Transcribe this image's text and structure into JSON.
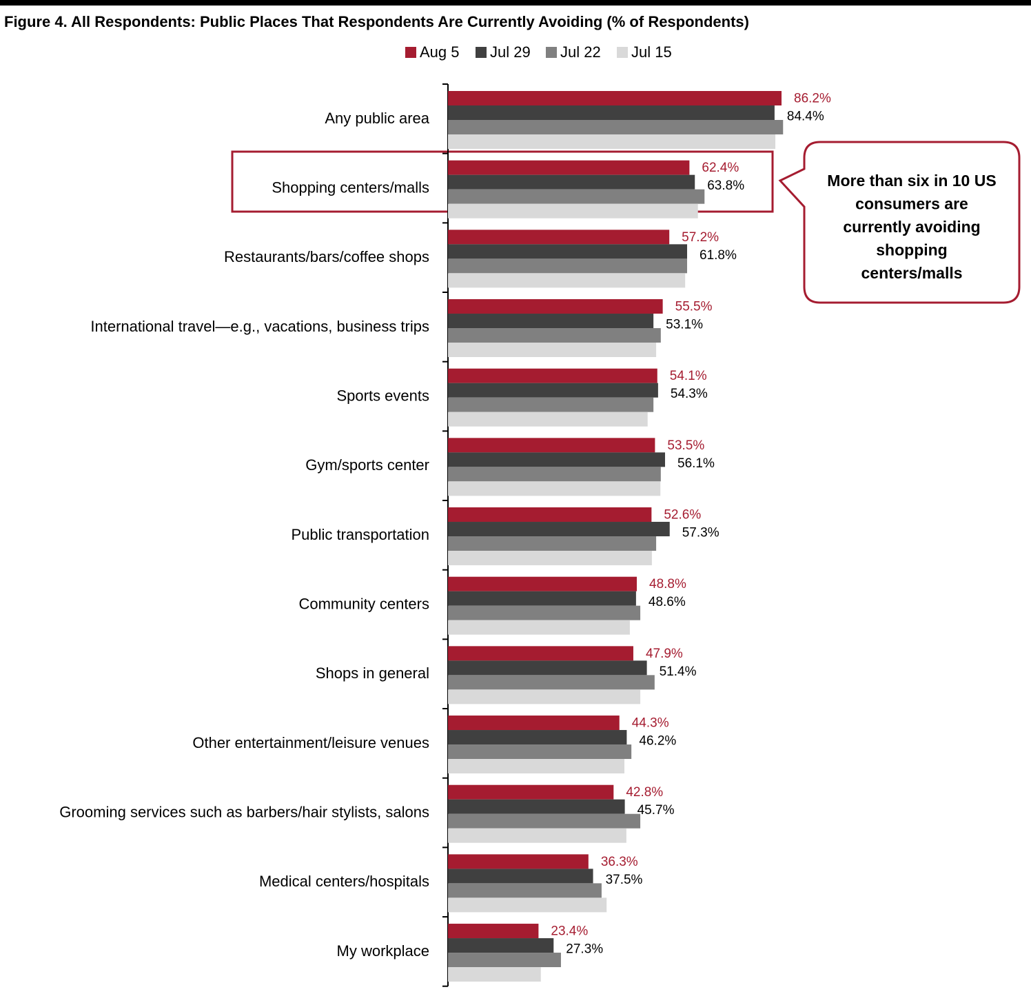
{
  "chart_data": {
    "type": "bar",
    "orientation": "horizontal",
    "title": "Figure 4. All Respondents: Public Places That Respondents Are Currently Avoiding (% of Respondents)",
    "categories": [
      "Any public area",
      "Shopping centers/malls",
      "Restaurants/bars/coffee shops",
      "International travel—e.g., vacations, business trips",
      "Sports events",
      "Gym/sports center",
      "Public transportation",
      "Community centers",
      "Shops in general",
      "Other entertainment/leisure venues",
      "Grooming services such as barbers/hair stylists, salons",
      "Medical centers/hospitals",
      "My workplace"
    ],
    "series": [
      {
        "name": "Aug 5",
        "color": "#a51c30",
        "values": [
          86.2,
          62.4,
          57.2,
          55.5,
          54.1,
          53.5,
          52.6,
          48.8,
          47.9,
          44.3,
          42.8,
          36.3,
          23.4
        ],
        "value_labels": [
          "86.2%",
          "62.4%",
          "57.2%",
          "55.5%",
          "54.1%",
          "53.5%",
          "52.6%",
          "48.8%",
          "47.9%",
          "44.3%",
          "42.8%",
          "36.3%",
          "23.4%"
        ]
      },
      {
        "name": "Jul 29",
        "color": "#404040",
        "values": [
          84.4,
          63.8,
          61.8,
          53.1,
          54.3,
          56.1,
          57.3,
          48.6,
          51.4,
          46.2,
          45.7,
          37.5,
          27.3
        ],
        "value_labels": [
          "84.4%",
          "63.8%",
          "61.8%",
          "53.1%",
          "54.3%",
          "56.1%",
          "57.3%",
          "48.6%",
          "51.4%",
          "46.2%",
          "45.7%",
          "37.5%",
          "27.3%"
        ]
      },
      {
        "name": "Jul 22",
        "color": "#808080",
        "values": [
          86.6,
          66.3,
          61.8,
          55.0,
          53.1,
          55.0,
          53.8,
          49.7,
          53.4,
          47.4,
          49.7,
          39.7,
          29.2
        ]
      },
      {
        "name": "Jul 15",
        "color": "#d9d9d9",
        "values": [
          84.6,
          64.6,
          61.3,
          53.8,
          51.6,
          54.9,
          52.7,
          47.0,
          49.7,
          45.6,
          46.1,
          41.0,
          24.0
        ]
      }
    ],
    "xlim": [
      0,
      100
    ],
    "annotation": [
      "More than six in 10 US",
      "consumers are",
      "currently avoiding",
      "shopping",
      "centers/malls"
    ]
  }
}
